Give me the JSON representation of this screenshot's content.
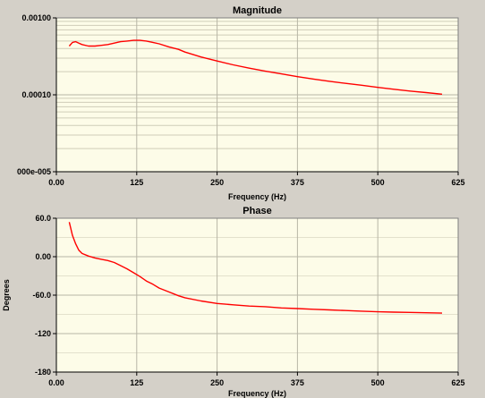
{
  "chart_data": [
    {
      "type": "line",
      "title": "Magnitude",
      "xlabel": "Frequency (Hz)",
      "ylabel": "",
      "scale_y": "log",
      "xlim": [
        0,
        625
      ],
      "ylim": [
        1e-05,
        0.001
      ],
      "xticks": [
        0,
        125,
        250,
        375,
        500,
        625
      ],
      "xtick_labels": [
        "0.00",
        "125",
        "250",
        "375",
        "500",
        "625"
      ],
      "yticks": [
        1e-05,
        0.0001,
        0.001
      ],
      "ytick_labels": [
        "000e-005",
        "0.00010",
        "0.00100"
      ],
      "grid": true,
      "series": [
        {
          "color": "#ff0000",
          "x": [
            20,
            25,
            30,
            35,
            40,
            50,
            60,
            70,
            80,
            90,
            100,
            110,
            120,
            130,
            140,
            150,
            160,
            175,
            190,
            200,
            225,
            250,
            275,
            300,
            325,
            350,
            375,
            400,
            425,
            450,
            475,
            500,
            525,
            550,
            575,
            600
          ],
          "y": [
            0.00043,
            0.00048,
            0.00049,
            0.00047,
            0.00045,
            0.00043,
            0.00043,
            0.00044,
            0.00045,
            0.00047,
            0.00049,
            0.0005,
            0.00051,
            0.00051,
            0.0005,
            0.00048,
            0.00046,
            0.00042,
            0.00039,
            0.00036,
            0.00031,
            0.000275,
            0.000245,
            0.000222,
            0.000203,
            0.000187,
            0.000172,
            0.00016,
            0.00015,
            0.000141,
            0.000133,
            0.000125,
            0.000118,
            0.000112,
            0.000107,
            0.000102
          ]
        }
      ]
    },
    {
      "type": "line",
      "title": "Phase",
      "xlabel": "Frequency (Hz)",
      "ylabel": "Degrees",
      "xlim": [
        0,
        625
      ],
      "ylim": [
        -180,
        60
      ],
      "xticks": [
        0,
        125,
        250,
        375,
        500,
        625
      ],
      "xtick_labels": [
        "0.00",
        "125",
        "250",
        "375",
        "500",
        "625"
      ],
      "yticks": [
        60,
        0,
        -60,
        -120,
        -180
      ],
      "ytick_labels": [
        "60.0",
        "0.00",
        "-60.0",
        "-120",
        "-180"
      ],
      "grid": true,
      "series": [
        {
          "color": "#ff0000",
          "x": [
            20,
            25,
            30,
            35,
            40,
            50,
            60,
            70,
            80,
            90,
            100,
            110,
            120,
            130,
            140,
            150,
            160,
            175,
            190,
            200,
            225,
            250,
            275,
            300,
            325,
            350,
            375,
            400,
            425,
            450,
            475,
            500,
            525,
            550,
            575,
            600
          ],
          "y": [
            54,
            33,
            20,
            10,
            5,
            1,
            -2,
            -4,
            -6,
            -9,
            -14,
            -19,
            -25,
            -31,
            -38,
            -43,
            -49,
            -55,
            -61,
            -64,
            -69,
            -73,
            -75,
            -77,
            -78,
            -80,
            -81,
            -82,
            -83,
            -84,
            -85,
            -86,
            -86.5,
            -87,
            -87.5,
            -88
          ]
        }
      ]
    }
  ]
}
